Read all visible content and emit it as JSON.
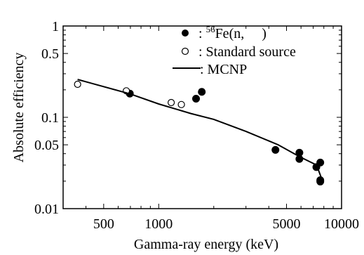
{
  "chart_data": {
    "type": "scatter",
    "xlabel": "Gamma-ray energy (keV)",
    "ylabel": "Absolute efficiency",
    "x_scale": "log",
    "y_scale": "log",
    "xlim": [
      300,
      10000
    ],
    "ylim": [
      0.01,
      1
    ],
    "x_tick_labels": [
      "500",
      "1000",
      "5000",
      "10000"
    ],
    "x_tick_values": [
      500,
      1000,
      5000,
      10000
    ],
    "y_tick_labels": [
      "0.01",
      "0.05",
      "0.1",
      "0.5",
      "1"
    ],
    "y_tick_values": [
      0.01,
      0.05,
      0.1,
      0.5,
      1
    ],
    "grid": false,
    "legend_position": "top-right",
    "legend": {
      "fe_colon": ": ",
      "fe_sup": "56",
      "fe_text": "Fe(n,     )",
      "standard": ": Standard source",
      "mcnp": ": MCNP"
    },
    "series": [
      {
        "key": "fe",
        "marker": "filled-circle",
        "color": "#000000",
        "points": [
          {
            "x": 695,
            "y": 0.182
          },
          {
            "x": 1600,
            "y": 0.16
          },
          {
            "x": 1720,
            "y": 0.19
          },
          {
            "x": 4350,
            "y": 0.044
          },
          {
            "x": 5880,
            "y": 0.041
          },
          {
            "x": 5880,
            "y": 0.035
          },
          {
            "x": 7280,
            "y": 0.0285
          },
          {
            "x": 7650,
            "y": 0.032
          },
          {
            "x": 7650,
            "y": 0.0205
          },
          {
            "x": 7650,
            "y": 0.0198
          }
        ]
      },
      {
        "key": "standard",
        "marker": "open-circle",
        "color": "#000000",
        "points": [
          {
            "x": 360,
            "y": 0.23
          },
          {
            "x": 665,
            "y": 0.195
          },
          {
            "x": 1170,
            "y": 0.145
          },
          {
            "x": 1330,
            "y": 0.138
          }
        ]
      },
      {
        "key": "mcnp",
        "marker": "line",
        "color": "#000000",
        "points": [
          {
            "x": 360,
            "y": 0.26
          },
          {
            "x": 700,
            "y": 0.18
          },
          {
            "x": 1000,
            "y": 0.14
          },
          {
            "x": 1500,
            "y": 0.11
          },
          {
            "x": 2000,
            "y": 0.095
          },
          {
            "x": 3000,
            "y": 0.07
          },
          {
            "x": 4500,
            "y": 0.05
          },
          {
            "x": 5900,
            "y": 0.037
          },
          {
            "x": 7300,
            "y": 0.03
          },
          {
            "x": 7800,
            "y": 0.021
          }
        ]
      }
    ]
  }
}
